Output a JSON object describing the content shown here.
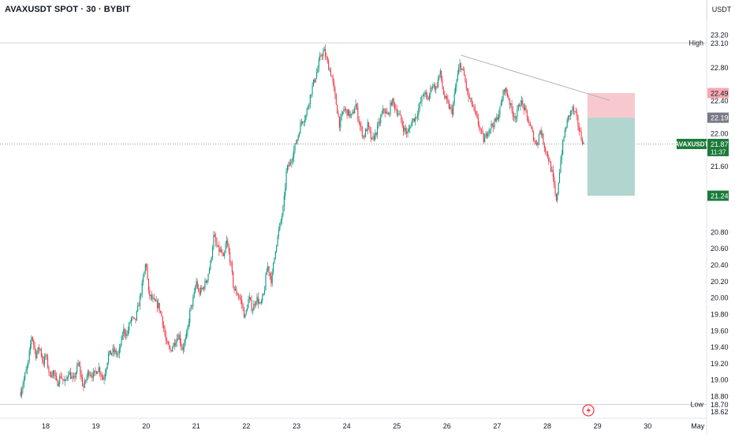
{
  "header": {
    "title": "AVAXUSDT SPOT · 30 · BYBIT",
    "currency": "USDT"
  },
  "colors": {
    "up": "#089981",
    "down": "#f23645",
    "stop_zone": "#f7c9ce",
    "target_zone": "#b2d5cf",
    "grid_line": "#e0e3eb",
    "trendline": "#b0b4bd"
  },
  "chart_data": {
    "type": "candlestick",
    "symbol": "AVAXUSDT",
    "interval": "30",
    "exchange": "BYBIT",
    "ylim": [
      18.55,
      23.3
    ],
    "y_ticks": [
      "23.20",
      "22.80",
      "22.40",
      "22.00",
      "21.60",
      "20.80",
      "20.60",
      "20.40",
      "20.20",
      "20.00",
      "19.80",
      "19.60",
      "19.40",
      "19.20",
      "19.00",
      "18.80"
    ],
    "x_ticks": [
      "18",
      "19",
      "20",
      "21",
      "22",
      "23",
      "24",
      "25",
      "26",
      "27",
      "28",
      "29",
      "30",
      "May"
    ],
    "high": {
      "label": "High",
      "value": "23.10"
    },
    "low": {
      "label": "Low",
      "value": "18.70"
    },
    "bottom_price": "18.62",
    "last_price": {
      "symbol": "AVAXUSDT",
      "value": "21.87",
      "countdown": "11:37"
    },
    "position": {
      "stop": "22.49",
      "entry": "22.19",
      "target": "21.24"
    },
    "close_path": [
      [
        17.5,
        18.85
      ],
      [
        17.65,
        19.2
      ],
      [
        17.72,
        19.55
      ],
      [
        17.8,
        19.3
      ],
      [
        17.88,
        19.4
      ],
      [
        17.95,
        19.2
      ],
      [
        18.0,
        19.3
      ],
      [
        18.08,
        19.05
      ],
      [
        18.15,
        19.1
      ],
      [
        18.22,
        18.95
      ],
      [
        18.3,
        19.05
      ],
      [
        18.38,
        18.95
      ],
      [
        18.45,
        19.1
      ],
      [
        18.55,
        18.98
      ],
      [
        18.65,
        19.2
      ],
      [
        18.75,
        18.9
      ],
      [
        18.85,
        19.1
      ],
      [
        18.95,
        19.05
      ],
      [
        19.05,
        19.15
      ],
      [
        19.15,
        19.0
      ],
      [
        19.25,
        19.3
      ],
      [
        19.35,
        19.35
      ],
      [
        19.45,
        19.3
      ],
      [
        19.55,
        19.6
      ],
      [
        19.62,
        19.55
      ],
      [
        19.7,
        19.75
      ],
      [
        19.78,
        19.7
      ],
      [
        19.88,
        20.0
      ],
      [
        19.95,
        20.25
      ],
      [
        20.0,
        20.45
      ],
      [
        20.05,
        20.05
      ],
      [
        20.15,
        19.95
      ],
      [
        20.25,
        19.9
      ],
      [
        20.32,
        19.75
      ],
      [
        20.4,
        19.45
      ],
      [
        20.48,
        19.35
      ],
      [
        20.56,
        19.45
      ],
      [
        20.65,
        19.55
      ],
      [
        20.72,
        19.38
      ],
      [
        20.8,
        19.5
      ],
      [
        20.88,
        19.85
      ],
      [
        20.95,
        20.0
      ],
      [
        21.0,
        20.2
      ],
      [
        21.05,
        20.05
      ],
      [
        21.12,
        20.1
      ],
      [
        21.2,
        20.2
      ],
      [
        21.28,
        20.4
      ],
      [
        21.35,
        20.75
      ],
      [
        21.42,
        20.6
      ],
      [
        21.5,
        20.55
      ],
      [
        21.55,
        20.45
      ],
      [
        21.6,
        20.7
      ],
      [
        21.68,
        20.45
      ],
      [
        21.75,
        20.1
      ],
      [
        21.82,
        20.05
      ],
      [
        21.9,
        19.95
      ],
      [
        21.97,
        19.75
      ],
      [
        22.05,
        20.0
      ],
      [
        22.12,
        19.85
      ],
      [
        22.2,
        20.0
      ],
      [
        22.28,
        19.9
      ],
      [
        22.35,
        20.05
      ],
      [
        22.42,
        20.4
      ],
      [
        22.5,
        20.2
      ],
      [
        22.58,
        20.6
      ],
      [
        22.66,
        20.85
      ],
      [
        22.74,
        21.1
      ],
      [
        22.8,
        21.55
      ],
      [
        22.88,
        21.65
      ],
      [
        22.95,
        21.8
      ],
      [
        23.02,
        21.95
      ],
      [
        23.1,
        22.15
      ],
      [
        23.18,
        22.2
      ],
      [
        23.25,
        22.4
      ],
      [
        23.33,
        22.6
      ],
      [
        23.41,
        22.75
      ],
      [
        23.48,
        22.95
      ],
      [
        23.55,
        23.0
      ],
      [
        23.62,
        22.85
      ],
      [
        23.7,
        22.7
      ],
      [
        23.78,
        22.4
      ],
      [
        23.86,
        22.1
      ],
      [
        23.94,
        22.3
      ],
      [
        24.02,
        22.25
      ],
      [
        24.1,
        22.2
      ],
      [
        24.18,
        22.35
      ],
      [
        24.26,
        22.1
      ],
      [
        24.34,
        21.95
      ],
      [
        24.42,
        22.1
      ],
      [
        24.5,
        21.9
      ],
      [
        24.58,
        22.0
      ],
      [
        24.66,
        22.15
      ],
      [
        24.74,
        22.3
      ],
      [
        24.82,
        22.2
      ],
      [
        24.9,
        22.4
      ],
      [
        24.98,
        22.3
      ],
      [
        25.06,
        22.2
      ],
      [
        25.14,
        22.05
      ],
      [
        25.22,
        22.0
      ],
      [
        25.3,
        22.15
      ],
      [
        25.38,
        22.2
      ],
      [
        25.46,
        22.35
      ],
      [
        25.54,
        22.5
      ],
      [
        25.62,
        22.4
      ],
      [
        25.7,
        22.6
      ],
      [
        25.78,
        22.55
      ],
      [
        25.86,
        22.75
      ],
      [
        25.94,
        22.45
      ],
      [
        26.02,
        22.35
      ],
      [
        26.1,
        22.25
      ],
      [
        26.18,
        22.6
      ],
      [
        26.26,
        22.85
      ],
      [
        26.34,
        22.7
      ],
      [
        26.42,
        22.45
      ],
      [
        26.5,
        22.35
      ],
      [
        26.58,
        22.2
      ],
      [
        26.66,
        22.05
      ],
      [
        26.74,
        21.9
      ],
      [
        26.82,
        22.05
      ],
      [
        26.9,
        22.1
      ],
      [
        26.98,
        22.15
      ],
      [
        27.06,
        22.3
      ],
      [
        27.14,
        22.55
      ],
      [
        27.22,
        22.45
      ],
      [
        27.3,
        22.25
      ],
      [
        27.38,
        22.2
      ],
      [
        27.46,
        22.4
      ],
      [
        27.54,
        22.3
      ],
      [
        27.62,
        22.15
      ],
      [
        27.7,
        22.0
      ],
      [
        27.78,
        21.85
      ],
      [
        27.86,
        22.05
      ],
      [
        27.94,
        21.85
      ],
      [
        28.02,
        21.7
      ],
      [
        28.1,
        21.5
      ],
      [
        28.18,
        21.15
      ],
      [
        28.26,
        21.65
      ],
      [
        28.34,
        22.0
      ],
      [
        28.42,
        22.2
      ],
      [
        28.5,
        22.3
      ],
      [
        28.58,
        22.2
      ],
      [
        28.65,
        22.0
      ],
      [
        28.72,
        21.87
      ]
    ]
  }
}
